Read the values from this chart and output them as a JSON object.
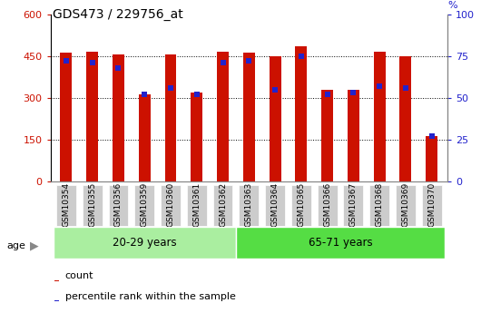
{
  "title": "GDS473 / 229756_at",
  "samples": [
    "GSM10354",
    "GSM10355",
    "GSM10356",
    "GSM10359",
    "GSM10360",
    "GSM10361",
    "GSM10362",
    "GSM10363",
    "GSM10364",
    "GSM10365",
    "GSM10366",
    "GSM10367",
    "GSM10368",
    "GSM10369",
    "GSM10370"
  ],
  "count_values": [
    462,
    465,
    455,
    312,
    455,
    318,
    465,
    462,
    450,
    485,
    330,
    330,
    465,
    450,
    162
  ],
  "percentile_values": [
    72,
    71,
    68,
    52,
    56,
    52,
    71,
    72,
    55,
    75,
    52,
    53,
    57,
    56,
    27
  ],
  "bar_color": "#cc1100",
  "blue_color": "#2222cc",
  "left_ylim": [
    0,
    600
  ],
  "right_ylim": [
    0,
    100
  ],
  "left_yticks": [
    0,
    150,
    300,
    450,
    600
  ],
  "right_yticks": [
    0,
    25,
    50,
    75,
    100
  ],
  "grid_lines": [
    150,
    300,
    450
  ],
  "groups": [
    {
      "label": "20-29 years",
      "start": 0,
      "end": 7,
      "color": "#aaeea0"
    },
    {
      "label": "65-71 years",
      "start": 7,
      "end": 15,
      "color": "#55dd44"
    }
  ],
  "age_label": "age",
  "legend_count": "count",
  "legend_pct": "percentile rank within the sample",
  "bar_width": 0.45,
  "xtick_bg": "#cccccc",
  "bar_scale": 6.0
}
